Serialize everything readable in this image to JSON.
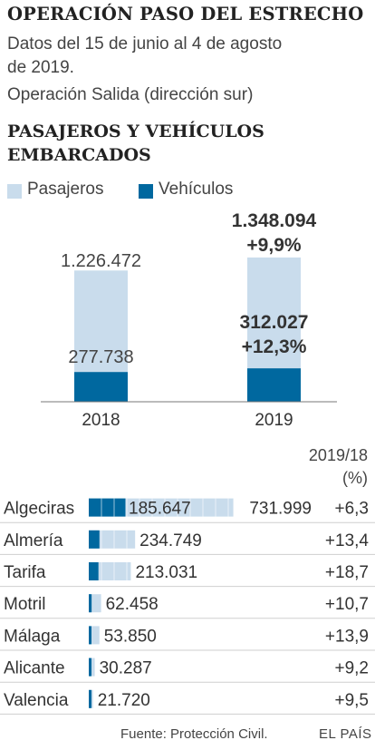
{
  "header": {
    "title": "OPERACIÓN PASO DEL ESTRECHO",
    "subtitle_line1": "Datos del 15 de junio al 4 de agosto",
    "subtitle_line2": "de 2019.",
    "subtitle_line3": "Operación Salida (dirección sur)",
    "section_title": "PASAJEROS Y VEHÍCULOS EMBARCADOS"
  },
  "legend": {
    "passengers": "Pasajeros",
    "vehicles": "Vehículos"
  },
  "colors": {
    "passengers": "#c9dcec",
    "vehicles": "#00689f"
  },
  "chart_data": [
    {
      "type": "bar",
      "stacked": "overlaid",
      "categories": [
        "2018",
        "2019"
      ],
      "series": [
        {
          "name": "Pasajeros",
          "values": [
            1226472,
            1348094
          ],
          "labels": [
            "1.226.472",
            "1.348.094"
          ]
        },
        {
          "name": "Vehículos",
          "values": [
            277738,
            312027
          ],
          "labels": [
            "277.738",
            "312.027"
          ]
        }
      ],
      "annotations": {
        "passengers_change_2019": "+9,9%",
        "vehicles_change_2019": "+12,3%"
      }
    },
    {
      "type": "bar",
      "orientation": "horizontal",
      "header": "2019/18",
      "header_unit": "(%)",
      "categories": [
        "Algeciras",
        "Almería",
        "Tarifa",
        "Motril",
        "Málaga",
        "Alicante",
        "Valencia"
      ],
      "series": [
        {
          "name": "Pasajeros",
          "values": [
            731999,
            234749,
            213031,
            62458,
            53850,
            30287,
            21720
          ],
          "labels": [
            "731.999",
            "234.749",
            "213.031",
            "62.458",
            "53.850",
            "30.287",
            "21.720"
          ]
        },
        {
          "name": "Vehículos",
          "values": [
            185647,
            null,
            null,
            null,
            null,
            null,
            null
          ],
          "labels": [
            "185.647",
            "",
            "",
            "",
            "",
            "",
            ""
          ]
        }
      ],
      "changes": [
        "+6,3",
        "+13,4",
        "+18,7",
        "+10,7",
        "+13,9",
        "+9,2",
        "+9,5"
      ]
    }
  ],
  "footer": {
    "source": "Fuente: Protección Civil.",
    "brand": "EL PAÍS"
  }
}
